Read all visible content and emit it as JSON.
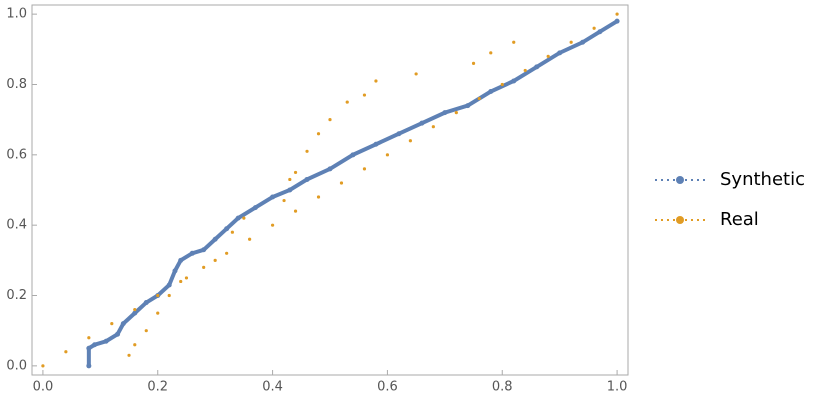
{
  "chart_data": {
    "type": "scatter",
    "series": [
      {
        "name": "Synthetic",
        "color": "#5e81b5",
        "line": true,
        "x": [
          0.08,
          0.08,
          0.09,
          0.11,
          0.13,
          0.14,
          0.16,
          0.18,
          0.2,
          0.22,
          0.23,
          0.24,
          0.26,
          0.28,
          0.3,
          0.32,
          0.34,
          0.37,
          0.4,
          0.43,
          0.46,
          0.5,
          0.54,
          0.58,
          0.62,
          0.66,
          0.7,
          0.74,
          0.78,
          0.82,
          0.86,
          0.9,
          0.94,
          0.97,
          1.0
        ],
        "y": [
          0.0,
          0.05,
          0.06,
          0.07,
          0.09,
          0.12,
          0.15,
          0.18,
          0.2,
          0.23,
          0.27,
          0.3,
          0.32,
          0.33,
          0.36,
          0.39,
          0.42,
          0.45,
          0.48,
          0.5,
          0.53,
          0.56,
          0.6,
          0.63,
          0.66,
          0.69,
          0.72,
          0.74,
          0.78,
          0.81,
          0.85,
          0.89,
          0.92,
          0.95,
          0.98
        ]
      },
      {
        "name": "Real",
        "color": "#e19c24",
        "line": false,
        "x": [
          0,
          0.04,
          0.08,
          0.12,
          0.15,
          0.16,
          0.16,
          0.18,
          0.2,
          0.2,
          0.22,
          0.24,
          0.25,
          0.28,
          0.3,
          0.32,
          0.33,
          0.35,
          0.36,
          0.4,
          0.42,
          0.43,
          0.44,
          0.44,
          0.46,
          0.48,
          0.48,
          0.5,
          0.52,
          0.53,
          0.56,
          0.56,
          0.58,
          0.6,
          0.64,
          0.65,
          0.68,
          0.72,
          0.75,
          0.76,
          0.78,
          0.8,
          0.82,
          0.84,
          0.88,
          0.92,
          0.96,
          1.0
        ],
        "y": [
          0,
          0.04,
          0.08,
          0.12,
          0.03,
          0.16,
          0.06,
          0.1,
          0.2,
          0.15,
          0.2,
          0.24,
          0.25,
          0.28,
          0.3,
          0.32,
          0.38,
          0.42,
          0.36,
          0.4,
          0.47,
          0.53,
          0.44,
          0.55,
          0.61,
          0.48,
          0.66,
          0.7,
          0.52,
          0.75,
          0.56,
          0.77,
          0.81,
          0.6,
          0.64,
          0.83,
          0.68,
          0.72,
          0.86,
          0.76,
          0.89,
          0.8,
          0.92,
          0.84,
          0.88,
          0.92,
          0.96,
          1.0
        ]
      }
    ],
    "xlim": [
      -0.019,
      1.019
    ],
    "ylim": [
      -0.026,
      1.026
    ],
    "xticks": [
      {
        "value": 0,
        "label": "0.0"
      },
      0.2,
      0.4,
      0.6,
      0.8,
      {
        "value": 1,
        "label": "1.0"
      }
    ],
    "yticks": [
      {
        "value": 0,
        "label": "0.0"
      },
      0.2,
      0.4,
      0.6,
      0.8,
      {
        "value": 1,
        "label": "1.0"
      }
    ],
    "grid": false,
    "legend": "right"
  }
}
